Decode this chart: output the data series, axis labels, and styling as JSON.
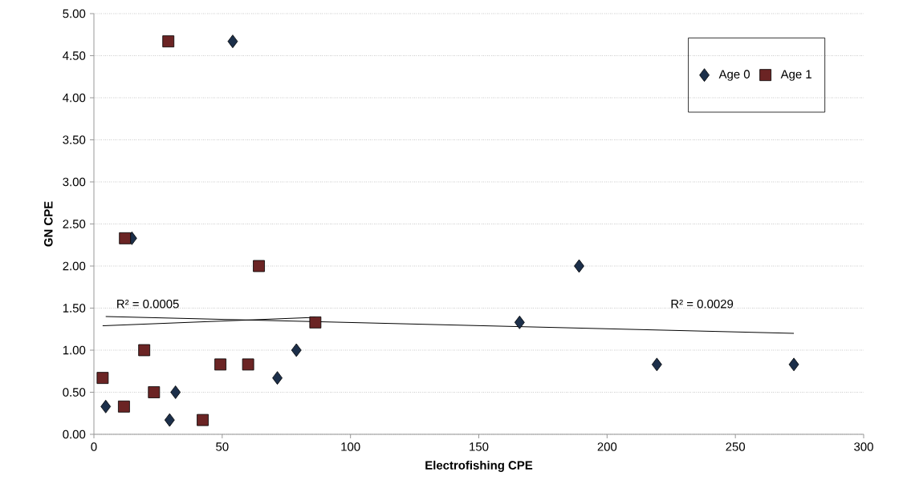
{
  "chart_data": {
    "type": "scatter",
    "xlabel": "Electrofishing CPE",
    "ylabel": "GN CPE",
    "xlim": [
      0,
      300
    ],
    "xticks": [
      0,
      50,
      100,
      150,
      200,
      250,
      300
    ],
    "ylim": [
      0,
      5
    ],
    "yticks": [
      {
        "value": 0,
        "label": "0.00"
      },
      {
        "value": 0.5,
        "label": "0.50"
      },
      {
        "value": 1,
        "label": "1.00"
      },
      {
        "value": 1.5,
        "label": "1.50"
      },
      {
        "value": 2,
        "label": "2.00"
      },
      {
        "value": 2.5,
        "label": "2.50"
      },
      {
        "value": 3,
        "label": "3.00"
      },
      {
        "value": 3.5,
        "label": "3.50"
      },
      {
        "value": 4,
        "label": "4.00"
      },
      {
        "value": 4.5,
        "label": "4.50"
      },
      {
        "value": 5,
        "label": "5.00"
      }
    ],
    "grid": "y",
    "legend": "top right",
    "series": [
      {
        "name": "Age 0",
        "marker": "diamond",
        "color": "#1c2f4a",
        "x": [
          4.6,
          14.8,
          29.5,
          31.8,
          54.1,
          71.5,
          78.9,
          165.9,
          189.1,
          219.4,
          272.8
        ],
        "values": [
          0.33,
          2.33,
          0.17,
          0.5,
          4.67,
          0.67,
          1.0,
          1.33,
          2.0,
          0.83,
          0.83
        ]
      },
      {
        "name": "Age 1",
        "marker": "square",
        "color": "#6b2424",
        "x": [
          3.4,
          11.7,
          12.1,
          19.6,
          23.4,
          29.0,
          42.4,
          49.3,
          60.1,
          64.3,
          86.3
        ],
        "values": [
          0.67,
          0.33,
          2.33,
          1.0,
          0.5,
          4.67,
          0.17,
          0.83,
          0.83,
          2.0,
          1.33
        ]
      },
      {
        "type": "line",
        "marker": "none",
        "color": "#000000",
        "x": [
          4.6,
          272.8
        ],
        "values": [
          1.4,
          1.2
        ]
      },
      {
        "type": "line",
        "marker": "none",
        "color": "#000000",
        "x": [
          3.4,
          86.3
        ],
        "values": [
          1.29,
          1.39
        ]
      }
    ],
    "annotations": [
      "R² = 0.0005",
      "R² = 0.0029"
    ]
  }
}
